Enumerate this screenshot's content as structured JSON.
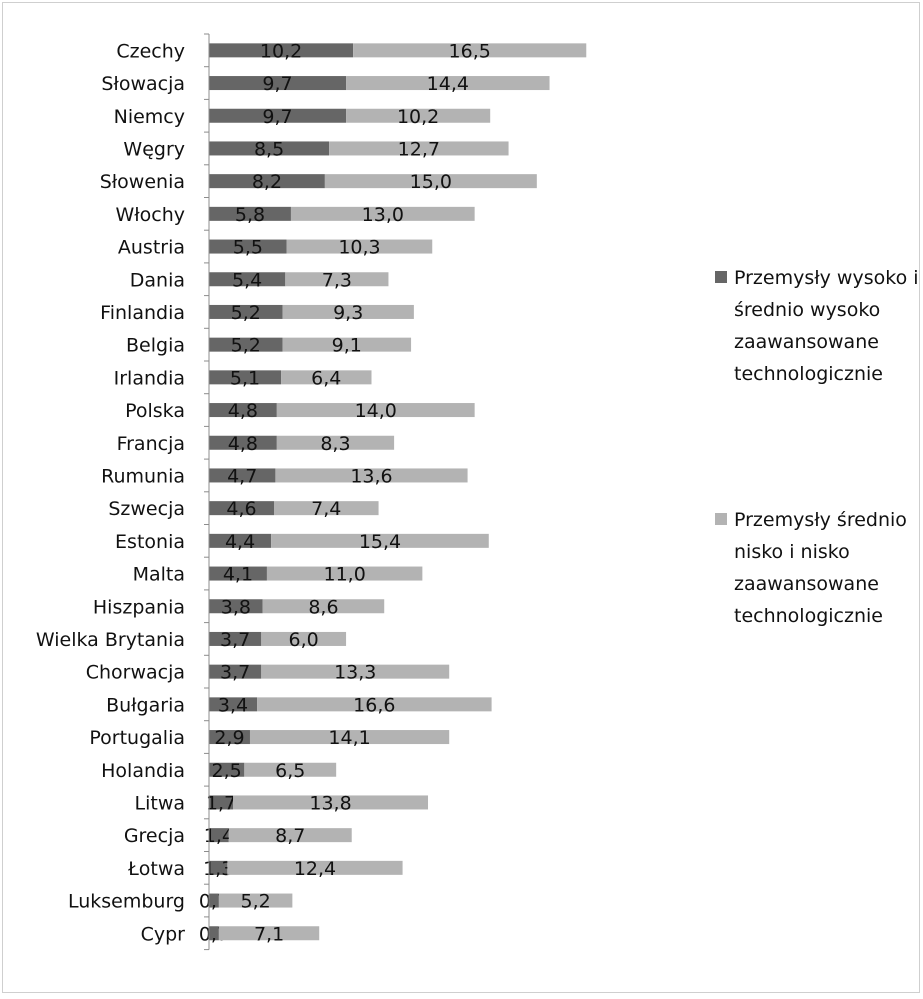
{
  "chart_data": {
    "type": "bar",
    "orientation": "horizontal",
    "stacked": true,
    "categories": [
      "Czechy",
      "Słowacja",
      "Niemcy",
      "Węgry",
      "Słowenia",
      "Włochy",
      "Austria",
      "Dania",
      "Finlandia",
      "Belgia",
      "Irlandia",
      "Polska",
      "Francja",
      "Rumunia",
      "Szwecja",
      "Estonia",
      "Malta",
      "Hiszpania",
      "Wielka Brytania",
      "Chorwacja",
      "Bułgaria",
      "Portugalia",
      "Holandia",
      "Litwa",
      "Grecja",
      "Łotwa",
      "Luksemburg",
      "Cypr"
    ],
    "series": [
      {
        "name": "Przemysły wysoko i średnio wysoko zaawansowane technologicznie",
        "color": "#666666",
        "values": [
          10.2,
          9.7,
          9.7,
          8.5,
          8.2,
          5.8,
          5.5,
          5.4,
          5.2,
          5.2,
          5.1,
          4.8,
          4.8,
          4.7,
          4.6,
          4.4,
          4.1,
          3.8,
          3.7,
          3.7,
          3.4,
          2.9,
          2.5,
          1.7,
          1.4,
          1.3,
          0.7,
          0.7
        ],
        "labels": [
          "10,2",
          "9,7",
          "9,7",
          "8,5",
          "8,2",
          "5,8",
          "5,5",
          "5,4",
          "5,2",
          "5,2",
          "5,1",
          "4,8",
          "4,8",
          "4,7",
          "4,6",
          "4,4",
          "4,1",
          "3,8",
          "3,7",
          "3,7",
          "3,4",
          "2,9",
          "2,5",
          "1,7",
          "1,4",
          "1,3",
          "0,7",
          "0,7"
        ]
      },
      {
        "name": "Przemysły średnio nisko i nisko zaawansowane technologicznie",
        "color": "#b3b3b3",
        "values": [
          16.5,
          14.4,
          10.2,
          12.7,
          15.0,
          13.0,
          10.3,
          7.3,
          9.3,
          9.1,
          6.4,
          14.0,
          8.3,
          13.6,
          7.4,
          15.4,
          11.0,
          8.6,
          6.0,
          13.3,
          16.6,
          14.1,
          6.5,
          13.8,
          8.7,
          12.4,
          5.2,
          7.1
        ],
        "labels": [
          "16,5",
          "14,4",
          "10,2",
          "12,7",
          "15,0",
          "13,0",
          "10,3",
          "7,3",
          "9,3",
          "9,1",
          "6,4",
          "14,0",
          "8,3",
          "13,6",
          "7,4",
          "15,4",
          "11,0",
          "8,6",
          "6,0",
          "13,3",
          "16,6",
          "14,1",
          "6,5",
          "13,8",
          "8,7",
          "12,4",
          "5,2",
          "7,1"
        ]
      }
    ],
    "legend": {
      "position": "right",
      "entries": [
        [
          "Przemysły wysoko i",
          "średnio wysoko",
          "zaawansowane",
          "technologicznie"
        ],
        [
          "Przemysły średnio",
          "nisko i nisko",
          "zaawansowane",
          "technologicznie"
        ]
      ]
    },
    "xlim": [
      0,
      27
    ],
    "grid": false
  }
}
